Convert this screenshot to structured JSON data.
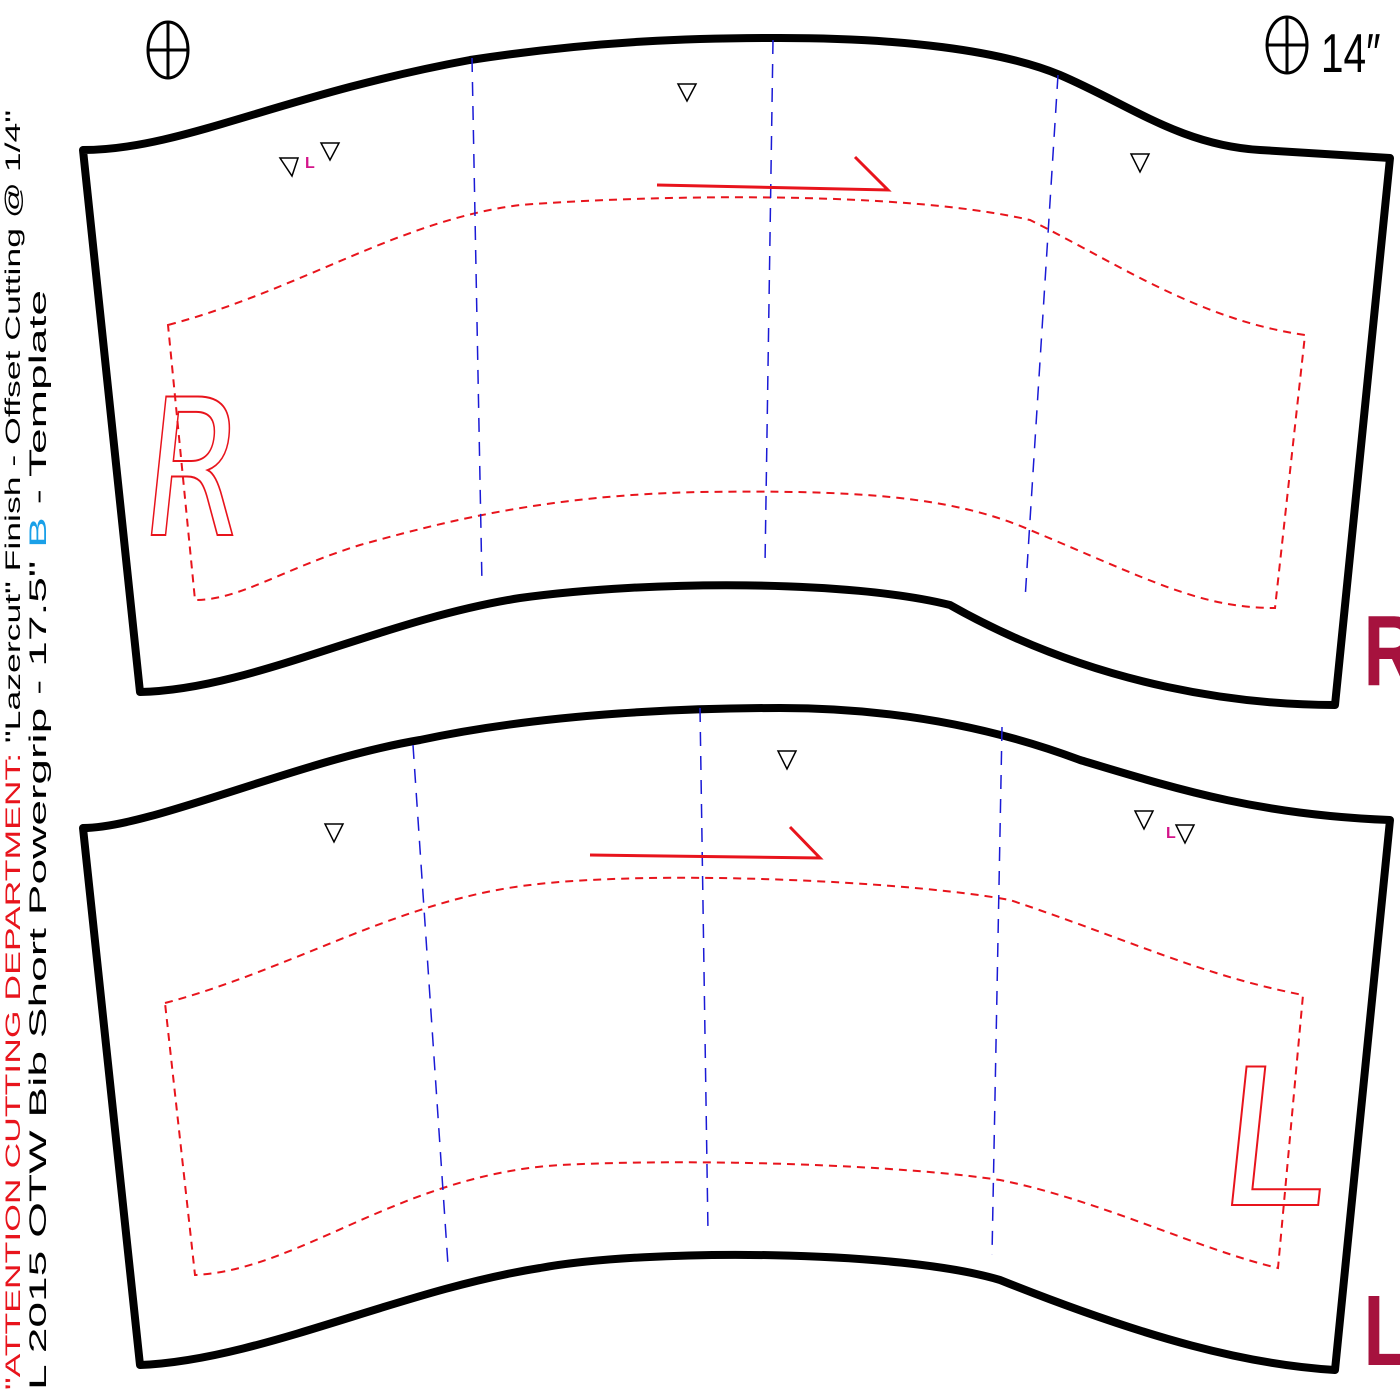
{
  "size_mark": "14″",
  "notes": {
    "attention": "\"ATTENTION CUTTING DEPARTMENT:",
    "finish": " \"Lazercut\"  Finish - Offset Cutting @ 1/4\"",
    "template_size": "L  2015 OTW Bib Short Powergrip - 17.5\" ",
    "template_variant": "B",
    "template_suffix": " - Template"
  },
  "pieces": [
    {
      "label": "R",
      "side_label": "R",
      "notch_mark": "L"
    },
    {
      "label": "L",
      "side_label": "L",
      "notch_mark": "L"
    }
  ]
}
